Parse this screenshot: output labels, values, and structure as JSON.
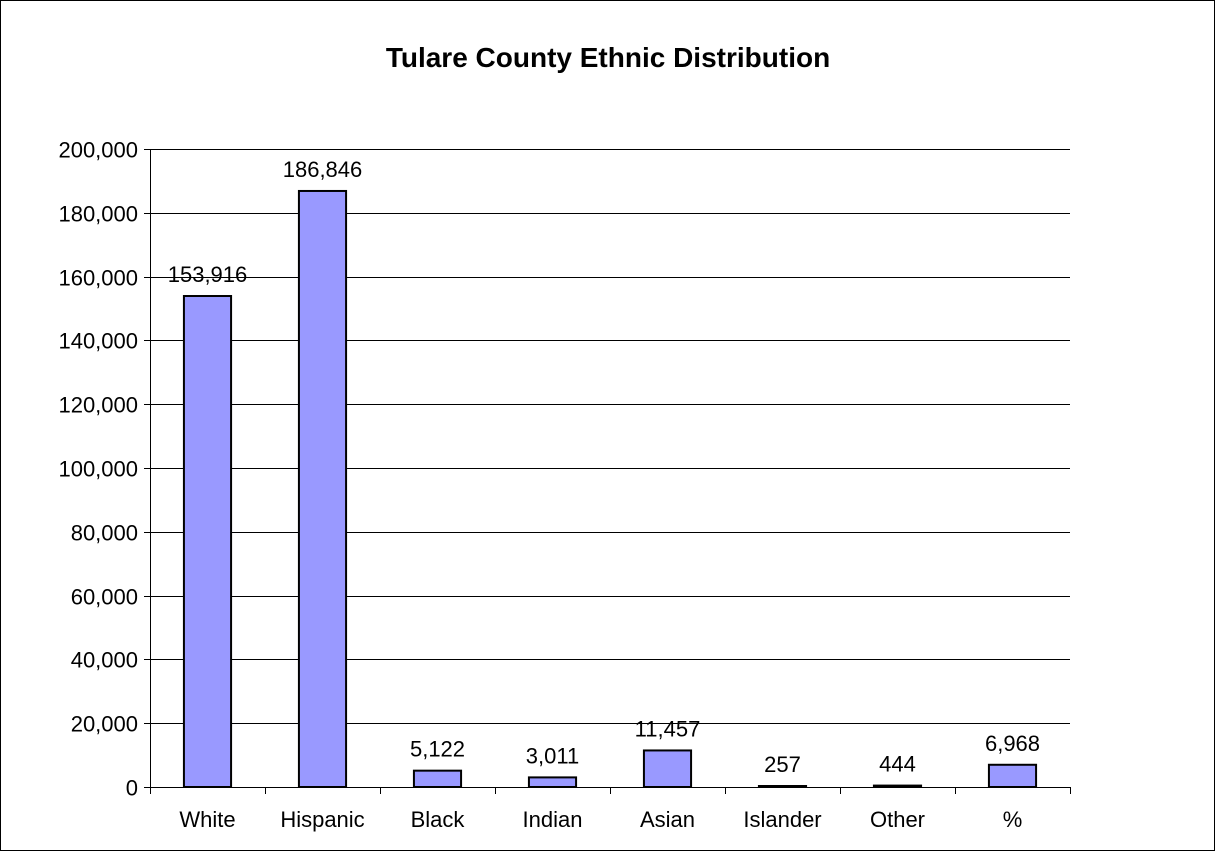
{
  "chart_data": {
    "type": "bar",
    "title": "Tulare County Ethnic Distribution",
    "xlabel": "",
    "ylabel": "",
    "categories": [
      "White",
      "Hispanic",
      "Black",
      "Indian",
      "Asian",
      "Islander",
      "Other",
      "%"
    ],
    "values": [
      153916,
      186846,
      5122,
      3011,
      11457,
      257,
      444,
      6968
    ],
    "data_labels": [
      "153,916",
      "186,846",
      "5,122",
      "3,011",
      "11,457",
      "257",
      "444",
      "6,968"
    ],
    "ylim": [
      0,
      200000
    ],
    "yticks": [
      0,
      20000,
      40000,
      60000,
      80000,
      100000,
      120000,
      140000,
      160000,
      180000,
      200000
    ],
    "ytick_labels": [
      "0",
      "20,000",
      "40,000",
      "60,000",
      "80,000",
      "100,000",
      "120,000",
      "140,000",
      "160,000",
      "180,000",
      "200,000"
    ],
    "grid": true,
    "legend": "none",
    "bar_color": "#9999ff",
    "bar_edge_color": "#000000",
    "grid_color": "#000000"
  }
}
